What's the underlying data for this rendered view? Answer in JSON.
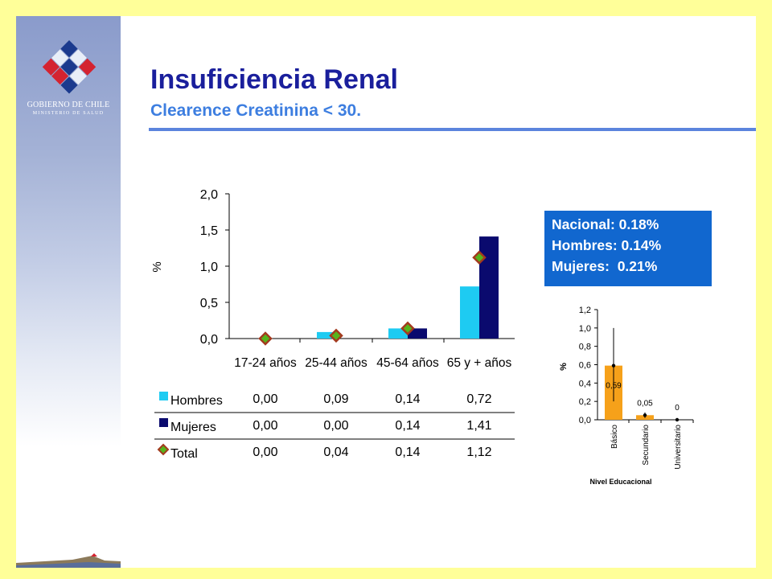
{
  "header": {
    "title": "Insuficiencia Renal",
    "subtitle": "Clearence Creatinina < 30."
  },
  "branding": {
    "line1": "GOBIERNO DE CHILE",
    "line2": "MINISTERIO DE SALUD"
  },
  "summary": {
    "lines": [
      "Nacional: 0.18%",
      "Hombres: 0.14%",
      "Mujeres:  0.21%"
    ]
  },
  "colors": {
    "hombres": "#1ECBF2",
    "mujeres": "#0A0A6E",
    "total_fill": "#56B41C",
    "total_stroke": "#A33A1E",
    "edu_bar": "#F6A11A",
    "slide_bg": "#FFFF99",
    "summary_bg": "#1167CF"
  },
  "chart_data": [
    {
      "type": "bar",
      "ylabel": "%",
      "ylim": [
        0,
        2.0
      ],
      "yticks": [
        "2,0",
        "1,5",
        "1,0",
        "0,5",
        "0,0"
      ],
      "categories": [
        "17-24 años",
        "25-44 años",
        "45-64 años",
        "65 y + años"
      ],
      "series": [
        {
          "name": "Hombres",
          "type": "bar",
          "values": [
            0.0,
            0.09,
            0.14,
            0.72
          ],
          "labels": [
            "0,00",
            "0,09",
            "0,14",
            "0,72"
          ]
        },
        {
          "name": "Mujeres",
          "type": "bar",
          "values": [
            0.0,
            0.0,
            0.14,
            1.41
          ],
          "labels": [
            "0,00",
            "0,00",
            "0,14",
            "1,41"
          ]
        },
        {
          "name": "Total",
          "type": "marker",
          "values": [
            0.0,
            0.04,
            0.14,
            1.12
          ],
          "labels": [
            "0,00",
            "0,04",
            "0,14",
            "1,12"
          ]
        }
      ],
      "legend": "data-table-below",
      "grid": false
    },
    {
      "type": "bar",
      "xlabel": "Nivel Educacional",
      "ylabel": "%",
      "ylim": [
        0,
        1.2
      ],
      "yticks": [
        "1,2",
        "1,0",
        "0,8",
        "0,6",
        "0,4",
        "0,2",
        "0,0"
      ],
      "categories": [
        "Básico",
        "Secundario",
        "Universitario"
      ],
      "values": [
        0.59,
        0.05,
        0
      ],
      "data_labels": [
        "0,59",
        "0,05",
        "0"
      ],
      "error_bars": [
        [
          0.2,
          1.0
        ],
        [
          0.02,
          0.08
        ],
        [
          0,
          0.005
        ]
      ],
      "grid": false
    }
  ]
}
